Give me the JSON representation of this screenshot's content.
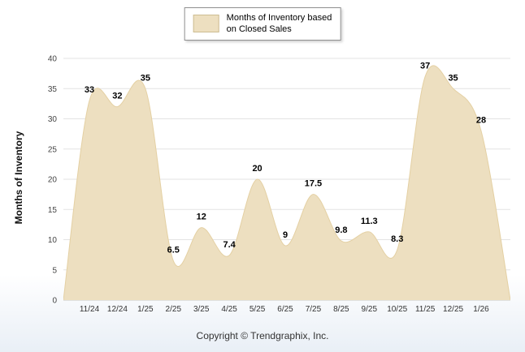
{
  "legend": {
    "lines": [
      "Months of Inventory based",
      "on Closed Sales"
    ]
  },
  "footer": {
    "copyright": "Copyright © Trendgraphix, Inc."
  },
  "chart_data": {
    "type": "area",
    "series_name": "Months of Inventory based on Closed Sales",
    "ylabel": "Months of Inventory",
    "xlabel": "",
    "categories": [
      "11/24",
      "12/24",
      "1/25",
      "2/25",
      "3/25",
      "4/25",
      "5/25",
      "6/25",
      "7/25",
      "8/25",
      "9/25",
      "10/25",
      "11/25",
      "12/25",
      "1/26"
    ],
    "values": [
      33,
      32,
      35,
      6.5,
      12,
      7.4,
      20,
      9,
      17.5,
      9.8,
      11.3,
      8.3,
      37,
      35,
      28
    ],
    "ylim": [
      0,
      40
    ],
    "yticks": [
      0,
      5,
      10,
      15,
      20,
      25,
      30,
      35,
      40
    ],
    "grid": true,
    "legend_position": "top",
    "fill_color": "#EDDFC0",
    "line_color": "#E4D0A3",
    "grid_color": "#e3e3e3",
    "baseline_color": "#c9c9c9"
  }
}
